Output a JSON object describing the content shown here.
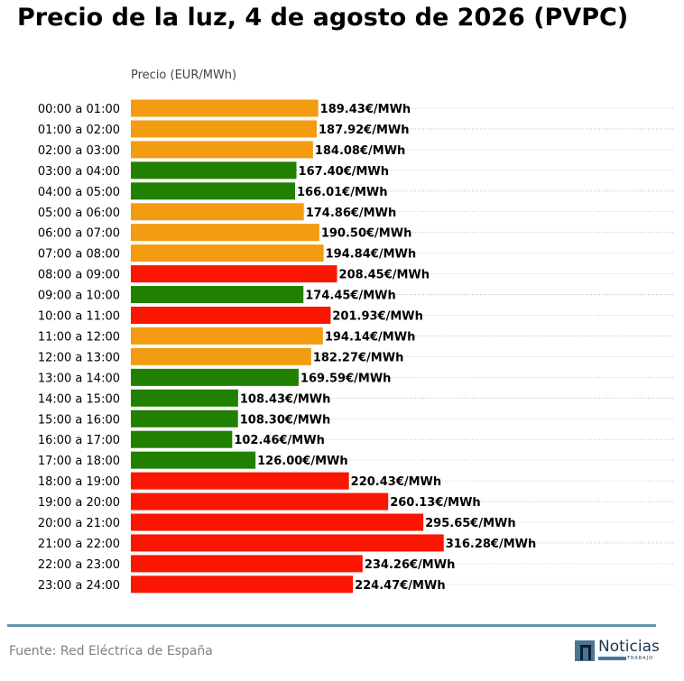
{
  "title": "Precio de la luz, 4 de agosto de 2026 (PVPC)",
  "source": "Fuente: Red Eléctrica de España",
  "logo": {
    "word": "Noticias",
    "sub": "TRABAJO"
  },
  "colors": {
    "low": "#228000",
    "mid": "#f39c12",
    "high": "#fa1600",
    "grid": "#b8b8b8",
    "rule": "#6394ab"
  },
  "chart_data": {
    "type": "bar",
    "orientation": "horizontal",
    "title": "Precio de la luz, 4 de agosto de 2026 (PVPC)",
    "xlabel": "Precio (EUR/MWh)",
    "ylabel": "",
    "xlim": [
      0,
      550
    ],
    "grid": "horizontal dotted",
    "categories": [
      "00:00 a 01:00",
      "01:00 a 02:00",
      "02:00 a 03:00",
      "03:00 a 04:00",
      "04:00 a 05:00",
      "05:00 a 06:00",
      "06:00 a 07:00",
      "07:00 a 08:00",
      "08:00 a 09:00",
      "09:00 a 10:00",
      "10:00 a 11:00",
      "11:00 a 12:00",
      "12:00 a 13:00",
      "13:00 a 14:00",
      "14:00 a 15:00",
      "15:00 a 16:00",
      "16:00 a 17:00",
      "17:00 a 18:00",
      "18:00 a 19:00",
      "19:00 a 20:00",
      "20:00 a 21:00",
      "21:00 a 22:00",
      "22:00 a 23:00",
      "23:00 a 24:00"
    ],
    "values": [
      189.43,
      187.92,
      184.08,
      167.4,
      166.01,
      174.86,
      190.5,
      194.84,
      208.45,
      174.45,
      201.93,
      194.14,
      182.27,
      169.59,
      108.43,
      108.3,
      102.46,
      126.0,
      220.43,
      260.13,
      295.65,
      316.28,
      234.26,
      224.47
    ],
    "value_labels": [
      "189.43€/MWh",
      "187.92€/MWh",
      "184.08€/MWh",
      "167.40€/MWh",
      "166.01€/MWh",
      "174.86€/MWh",
      "190.50€/MWh",
      "194.84€/MWh",
      "208.45€/MWh",
      "174.45€/MWh",
      "201.93€/MWh",
      "194.14€/MWh",
      "182.27€/MWh",
      "169.59€/MWh",
      "108.43€/MWh",
      "108.30€/MWh",
      "102.46€/MWh",
      "126.00€/MWh",
      "220.43€/MWh",
      "260.13€/MWh",
      "295.65€/MWh",
      "316.28€/MWh",
      "234.26€/MWh",
      "224.47€/MWh"
    ],
    "bar_levels": [
      "mid",
      "mid",
      "mid",
      "low",
      "low",
      "mid",
      "mid",
      "mid",
      "high",
      "low",
      "high",
      "mid",
      "mid",
      "low",
      "low",
      "low",
      "low",
      "low",
      "high",
      "high",
      "high",
      "high",
      "high",
      "high"
    ]
  }
}
